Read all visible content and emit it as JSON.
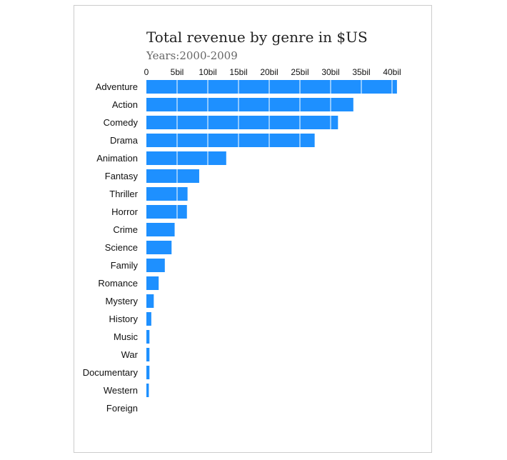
{
  "chart_data": {
    "type": "bar",
    "orientation": "horizontal",
    "title": "Total revenue by genre in $US",
    "subtitle": "Years:2000-2009",
    "xlabel": "",
    "ylabel": "",
    "xlim": [
      0,
      41
    ],
    "x_ticks": [
      0,
      5,
      10,
      15,
      20,
      25,
      30,
      35,
      40
    ],
    "x_tick_labels": [
      "0",
      "5bil",
      "10bil",
      "15bil",
      "20bil",
      "25bil",
      "30bil",
      "35bil",
      "40bil"
    ],
    "grid": "vertical gridlines drawn over bars in white",
    "bar_color": "#1e90ff",
    "gridline_color": "#ffffff",
    "categories": [
      "Adventure",
      "Action",
      "Comedy",
      "Drama",
      "Animation",
      "Fantasy",
      "Thriller",
      "Horror",
      "Crime",
      "Science",
      "Family",
      "Romance",
      "Mystery",
      "History",
      "Music",
      "War",
      "Documentary",
      "Western",
      "Foreign"
    ],
    "values": [
      40.8,
      33.7,
      31.2,
      27.4,
      13.0,
      8.6,
      6.7,
      6.6,
      4.6,
      4.1,
      3.0,
      2.0,
      1.2,
      0.8,
      0.5,
      0.5,
      0.5,
      0.4,
      0
    ]
  }
}
